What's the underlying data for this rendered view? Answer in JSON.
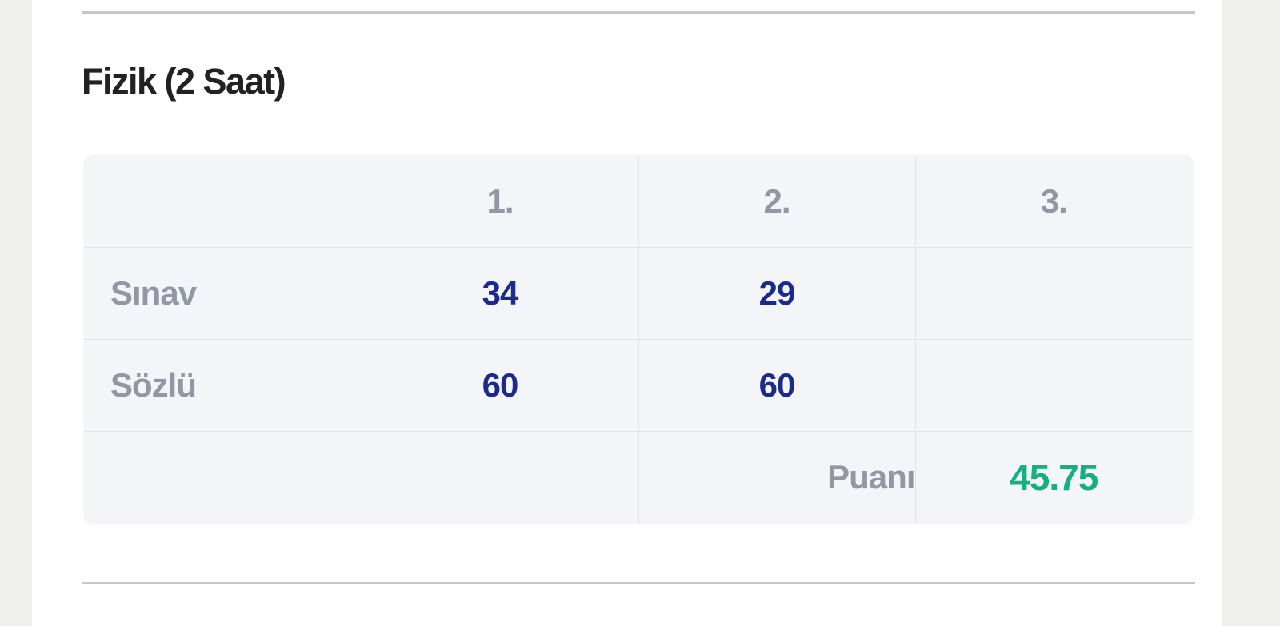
{
  "section": {
    "title": "Fizik (2 Saat)"
  },
  "table": {
    "headers": [
      "",
      "1.",
      "2.",
      "3."
    ],
    "rows": [
      {
        "label": "Sınav",
        "values": [
          "34",
          "29",
          ""
        ]
      },
      {
        "label": "Sözlü",
        "values": [
          "60",
          "60",
          ""
        ]
      }
    ],
    "score_label": "Puanı",
    "score_value": "45.75"
  },
  "colors": {
    "value": "#1b2a8c",
    "score": "#16b07e",
    "label": "#9197a3"
  }
}
